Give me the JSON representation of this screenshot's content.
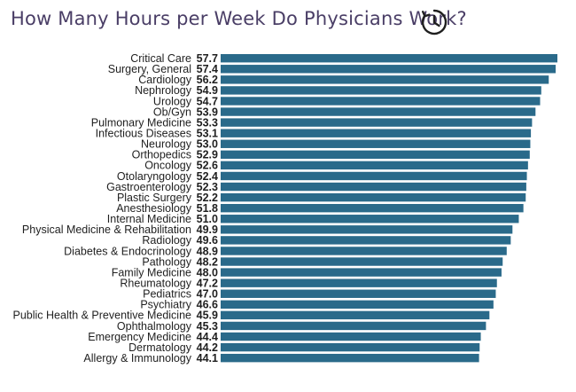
{
  "title": "How Many Hours per Week Do Physicians Work?",
  "colors": {
    "bar": "#2a6a8a",
    "title": "#4a3e66"
  },
  "chart_data": {
    "type": "bar",
    "orientation": "horizontal",
    "categories": [
      "Critical Care",
      "Surgery, General",
      "Cardiology",
      "Nephrology",
      "Urology",
      "Ob/Gyn",
      "Pulmonary Medicine",
      "Infectious Diseases",
      "Neurology",
      "Orthopedics",
      "Oncology",
      "Otolaryngology",
      "Gastroenterology",
      "Plastic Surgery",
      "Anesthesiology",
      "Internal Medicine",
      "Physical Medicine & Rehabilitation",
      "Radiology",
      "Diabetes & Endocrinology",
      "Pathology",
      "Family Medicine",
      "Rheumatology",
      "Pediatrics",
      "Psychiatry",
      "Public Health & Preventive Medicine",
      "Ophthalmology",
      "Emergency Medicine",
      "Dermatology",
      "Allergy & Immunology"
    ],
    "values": [
      57.7,
      57.4,
      56.2,
      54.9,
      54.7,
      53.9,
      53.3,
      53.1,
      53.0,
      52.9,
      52.6,
      52.4,
      52.3,
      52.2,
      51.8,
      51.0,
      49.9,
      49.6,
      48.9,
      48.2,
      48.0,
      47.2,
      47.0,
      46.6,
      45.9,
      45.3,
      44.4,
      44.2,
      44.1
    ],
    "labels": [
      "57.7",
      "57.4",
      "56.2",
      "54.9",
      "54.7",
      "53.9",
      "53.3",
      "53.1",
      "53.0",
      "52.9",
      "52.6",
      "52.4",
      "52.3",
      "52.2",
      "51.8",
      "51.0",
      "49.9",
      "49.6",
      "48.9",
      "48.2",
      "48.0",
      "47.2",
      "47.0",
      "46.6",
      "45.9",
      "45.3",
      "44.4",
      "44.2",
      "44.1"
    ],
    "title": "How Many Hours per Week Do Physicians Work?",
    "xlabel": "",
    "ylabel": "",
    "grid": false
  }
}
